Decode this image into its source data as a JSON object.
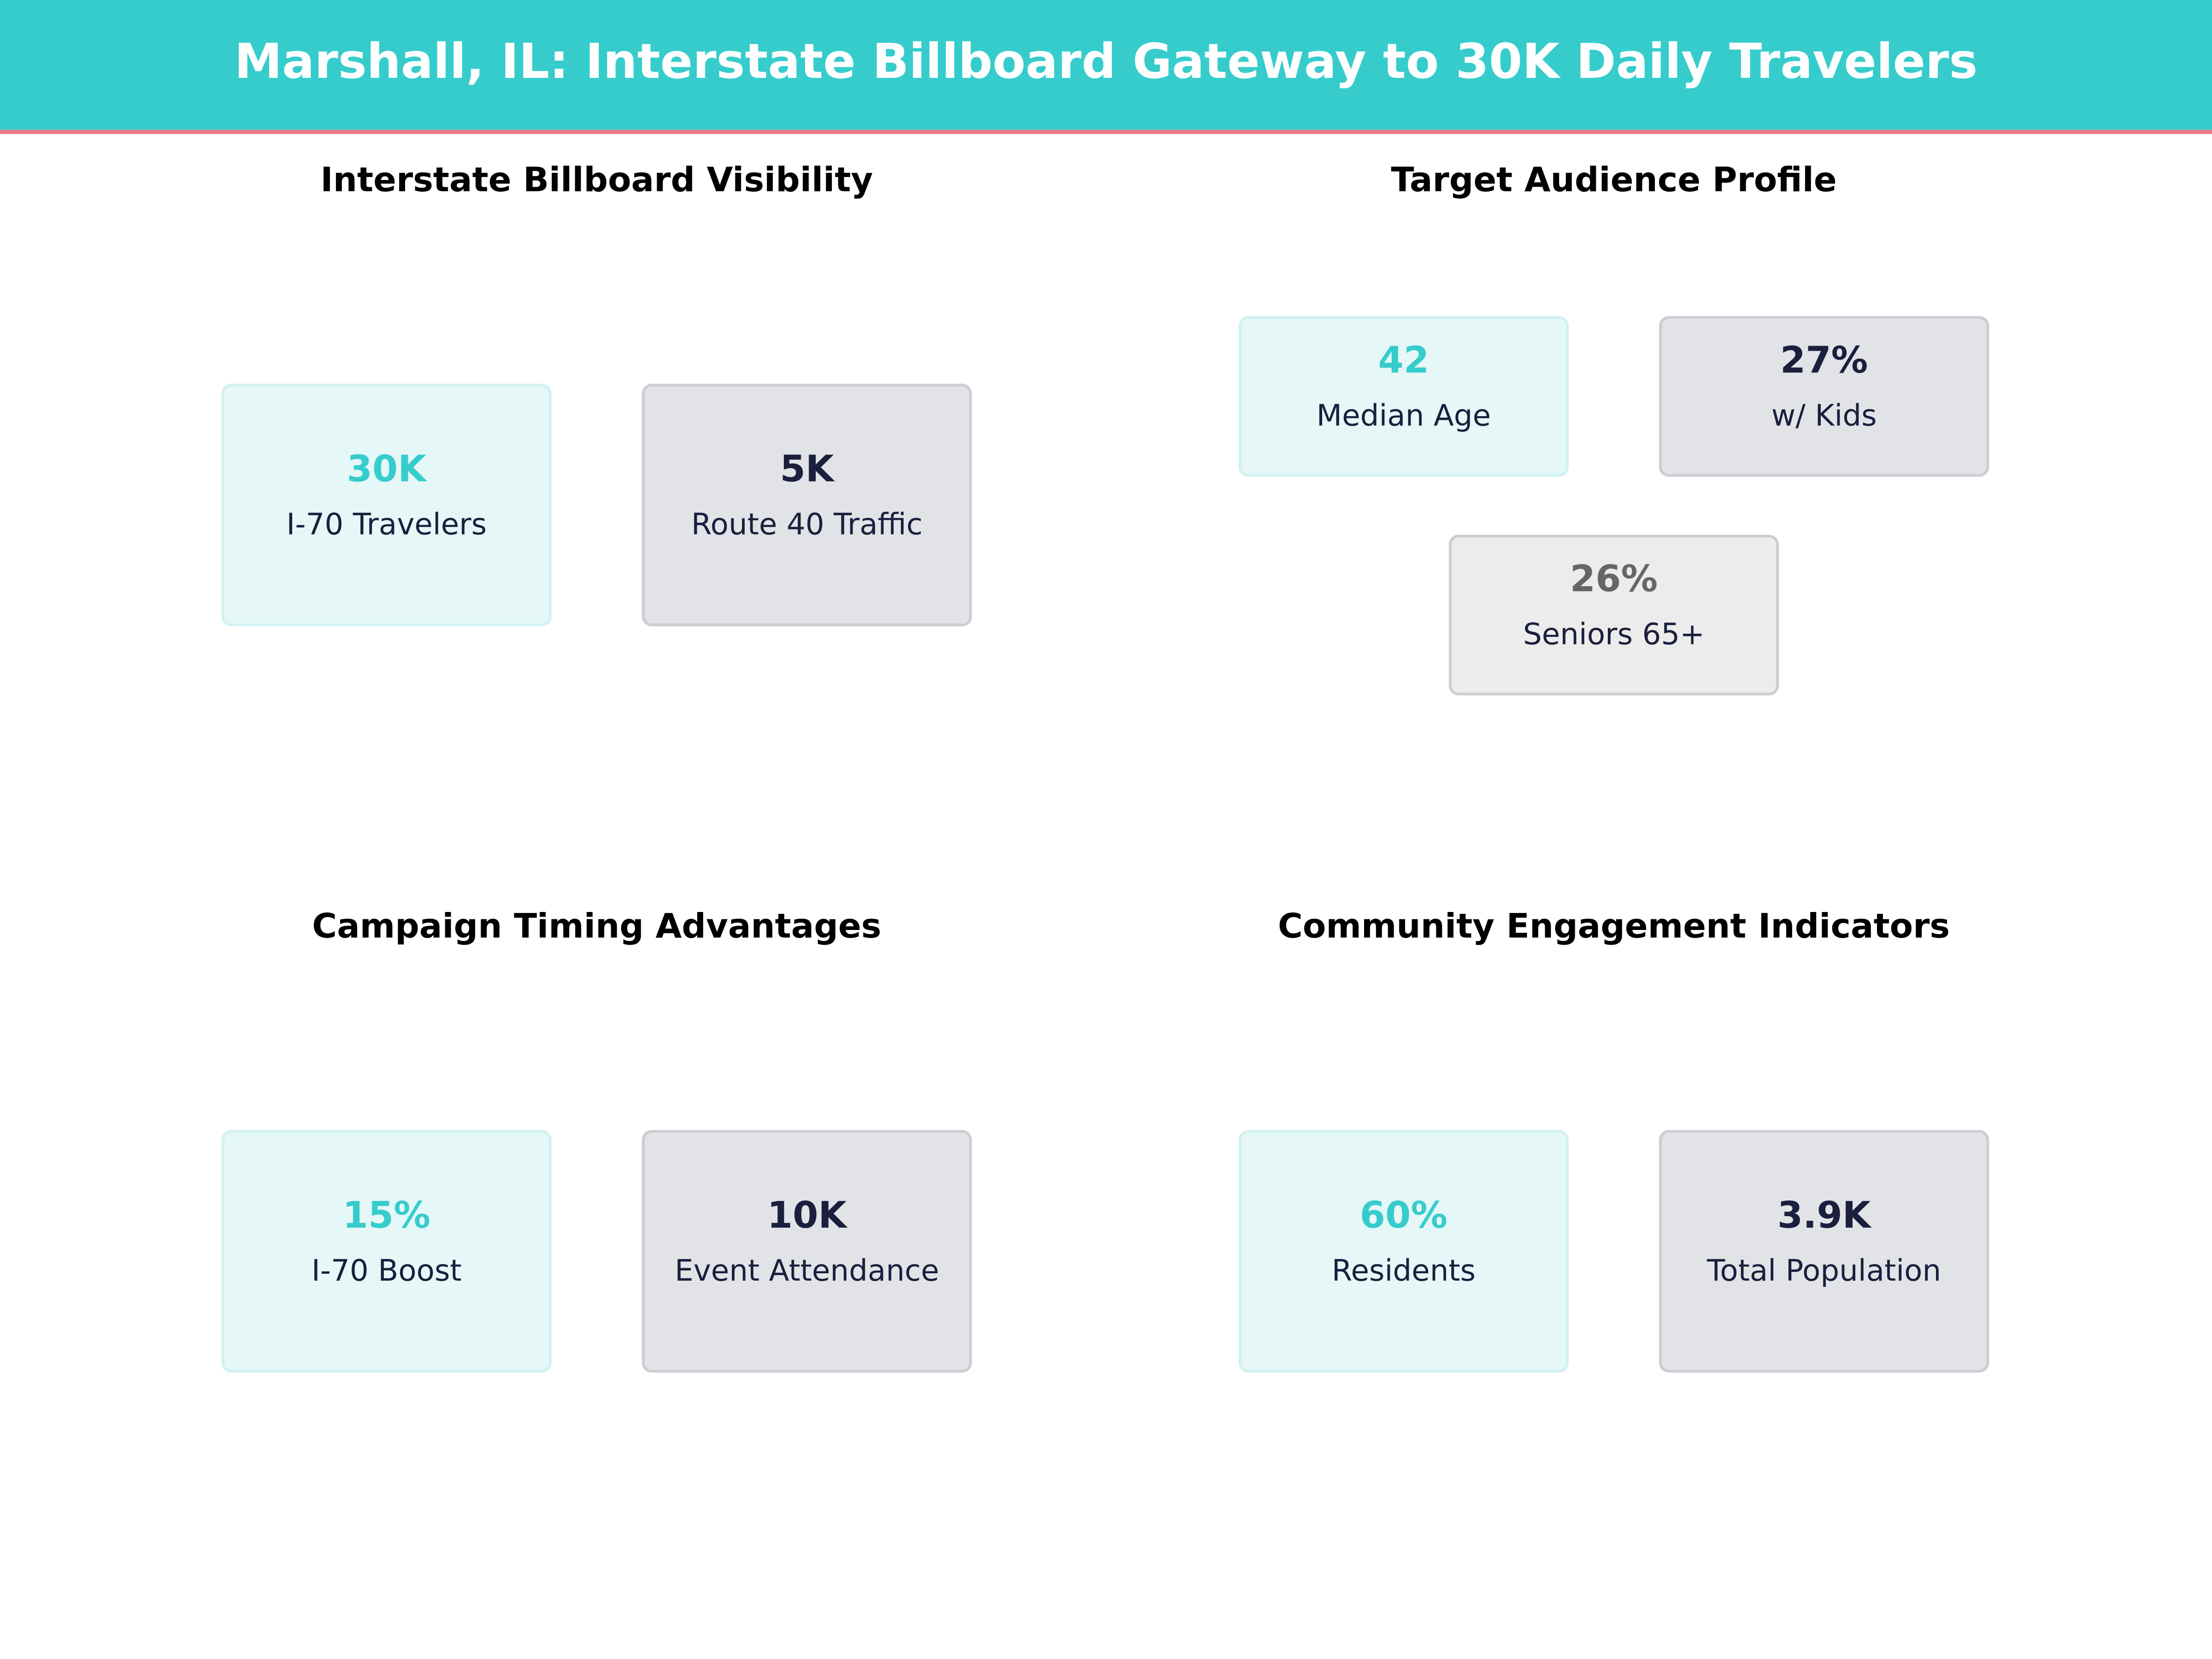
{
  "header": {
    "title": "Marshall, IL: Interstate Billboard Gateway to 30K Daily Travelers"
  },
  "panels": [
    {
      "title": "Interstate Billboard Visibility",
      "cards": [
        {
          "value": "30K",
          "label": "I-70 Travelers",
          "color": "#36cccc",
          "fill": "#e5f7f7"
        },
        {
          "value": "5K",
          "label": "Route 40 Traffic",
          "color": "#1a1f3d",
          "fill": "#e2e3e7"
        }
      ]
    },
    {
      "title": "Target Audience Profile",
      "cards": [
        {
          "value": "42",
          "label": "Median Age",
          "color": "#36cccc",
          "fill": "#e5f7f7"
        },
        {
          "value": "27%",
          "label": "w/ Kids",
          "color": "#1a1f3d",
          "fill": "#e2e3e7"
        },
        {
          "value": "26%",
          "label": "Seniors 65+",
          "color": "#666666",
          "fill": "#ececec"
        }
      ]
    },
    {
      "title": "Campaign Timing Advantages",
      "cards": [
        {
          "value": "15%",
          "label": "I-70 Boost",
          "color": "#36cccc",
          "fill": "#e5f7f7"
        },
        {
          "value": "10K",
          "label": "Event Attendance",
          "color": "#1a1f3d",
          "fill": "#e2e3e7"
        }
      ]
    },
    {
      "title": "Community Engagement Indicators",
      "cards": [
        {
          "value": "60%",
          "label": "Residents",
          "color": "#36cccc",
          "fill": "#e5f7f7"
        },
        {
          "value": "3.9K",
          "label": "Total Population",
          "color": "#1a1f3d",
          "fill": "#e2e3e7"
        }
      ]
    }
  ]
}
